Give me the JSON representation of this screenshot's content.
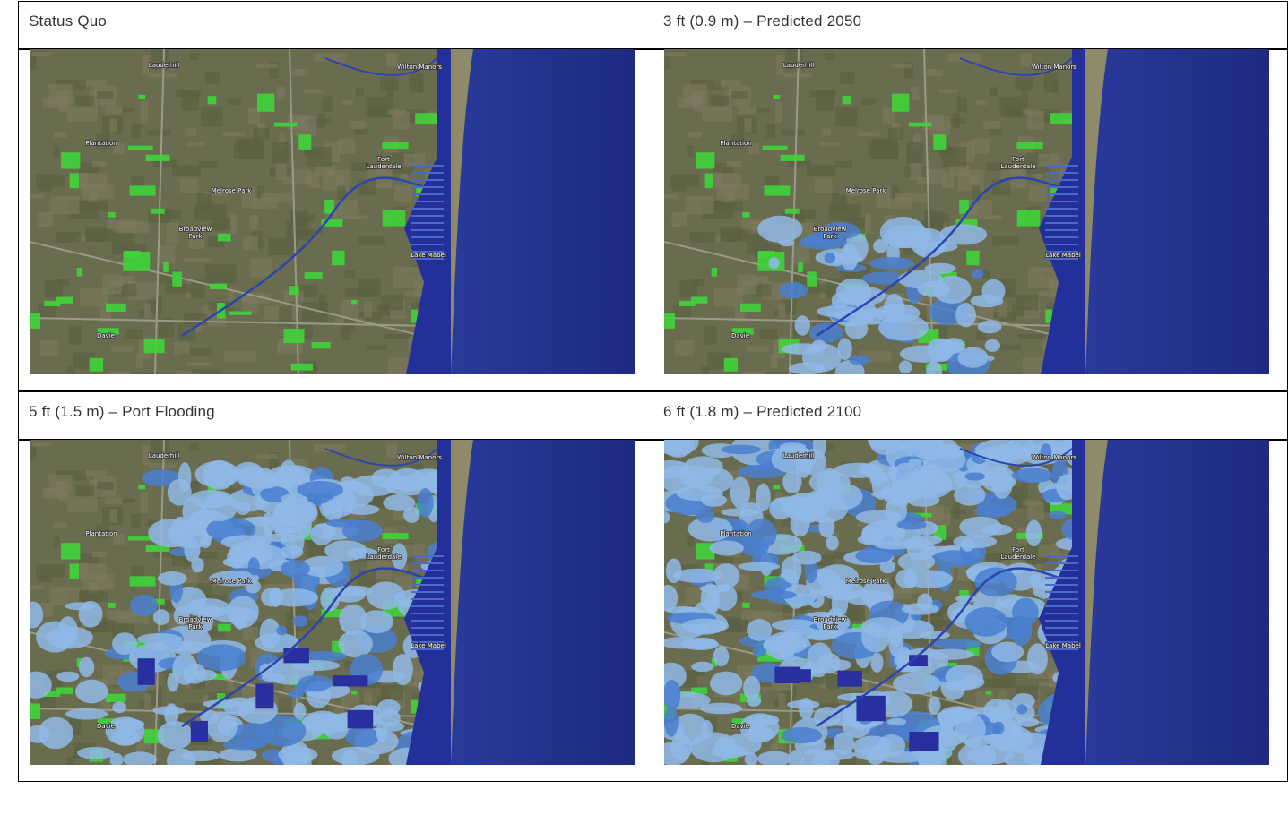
{
  "table": {
    "rows": [
      [
        {
          "title": "Status Quo"
        },
        {
          "title": "3 ft (0.9 m) – Predicted 2050"
        }
      ],
      [
        {
          "title": "5 ft (1.5 m) – Port Flooding"
        },
        {
          "title": "6 ft (1.8 m) – Predicted 2100"
        }
      ]
    ]
  },
  "map_labels": [
    {
      "lines": [
        "Lauderhill"
      ]
    },
    {
      "lines": [
        "Wilton Manors"
      ]
    },
    {
      "lines": [
        "Plantation"
      ]
    },
    {
      "lines": [
        "Fort",
        "Lauderdale"
      ]
    },
    {
      "lines": [
        "Melrose Park"
      ]
    },
    {
      "lines": [
        "Broadview",
        "Park"
      ]
    },
    {
      "lines": [
        "Lake Mabel"
      ]
    },
    {
      "lines": [
        "Davie"
      ]
    }
  ]
}
